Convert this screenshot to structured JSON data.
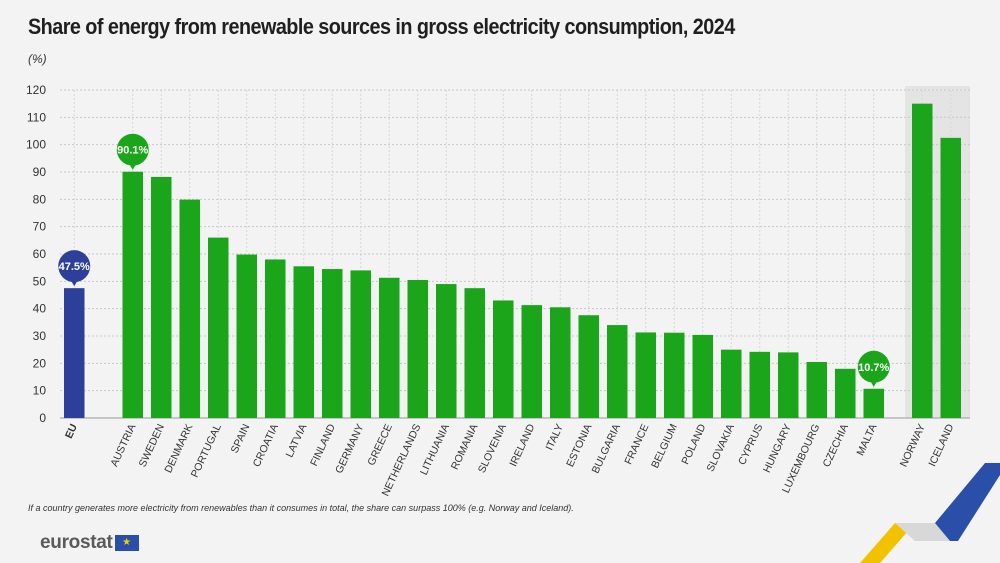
{
  "title": "Share of energy from renewable sources in gross electricity consumption, 2024",
  "unit": "(%)",
  "footnote": "If a country generates more electricity from renewables than it consumes in total, the share can surpass 100% (e.g. Norway and Iceland).",
  "logo_text": "eurostat",
  "colors": {
    "eu": "#2e3f99",
    "country": "#1aa51a",
    "grid": "#c8c8c8",
    "highlight_bg": "#e4e4e4"
  },
  "chart_data": {
    "type": "bar",
    "title": "Share of energy from renewable sources in gross electricity consumption, 2024",
    "ylabel": "(%)",
    "ylim": [
      0,
      120
    ],
    "yticks": [
      0,
      10,
      20,
      30,
      40,
      50,
      60,
      70,
      80,
      90,
      100,
      110,
      120
    ],
    "categories": [
      "EU",
      "AUSTRIA",
      "SWEDEN",
      "DENMARK",
      "PORTUGAL",
      "SPAIN",
      "CROATIA",
      "LATVIA",
      "FINLAND",
      "GERMANY",
      "GREECE",
      "NETHERLANDS",
      "LITHUANIA",
      "ROMANIA",
      "SLOVENIA",
      "IRELAND",
      "ITALY",
      "ESTONIA",
      "BULGARIA",
      "FRANCE",
      "BELGIUM",
      "POLAND",
      "SLOVAKIA",
      "CYPRUS",
      "HUNGARY",
      "LUXEMBOURG",
      "CZECHIA",
      "MALTA",
      "NORWAY",
      "ICELAND"
    ],
    "values": [
      47.5,
      90.1,
      88.2,
      79.9,
      66.0,
      59.8,
      58.0,
      55.5,
      54.5,
      54.0,
      51.3,
      50.5,
      49.0,
      47.5,
      43.0,
      41.3,
      40.5,
      37.6,
      34.0,
      31.3,
      31.2,
      30.4,
      25.0,
      24.2,
      24.0,
      20.5,
      18.0,
      10.7,
      115.0,
      102.5
    ],
    "labels": [
      {
        "category": "EU",
        "text": "47.5%",
        "color": "#2e3f99"
      },
      {
        "category": "AUSTRIA",
        "text": "90.1%",
        "color": "#1aa51a"
      },
      {
        "category": "MALTA",
        "text": "10.7%",
        "color": "#1aa51a"
      }
    ],
    "highlight": [
      "NORWAY",
      "ICELAND"
    ],
    "grid": true
  }
}
